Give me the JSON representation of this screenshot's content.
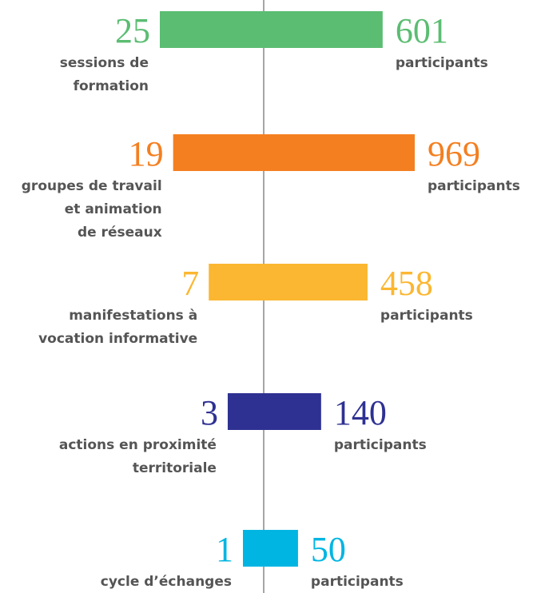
{
  "chart_data": {
    "type": "butterfly",
    "categories": [
      [
        "sessions de",
        "formation"
      ],
      [
        "groupes de travail",
        "et animation",
        "de réseaux"
      ],
      [
        "manifestations à",
        "vocation informative"
      ],
      [
        "actions en proximité",
        "territoriale"
      ],
      [
        "cycle d’échanges"
      ]
    ],
    "counts": [
      25,
      19,
      7,
      3,
      1
    ],
    "participants": [
      601,
      969,
      458,
      140,
      50
    ],
    "unit": "participants",
    "colors": [
      "#5bbd72",
      "#f47f20",
      "#fbb731",
      "#2e3192",
      "#00b5e2"
    ]
  }
}
